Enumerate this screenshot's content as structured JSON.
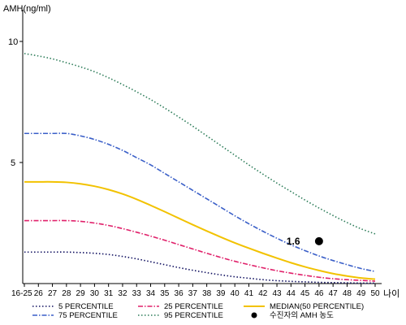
{
  "chart_data": {
    "type": "line",
    "title": "",
    "ylabel": "AMH(ng/ml)",
    "xlabel": "나이",
    "x_categories": [
      "16-25",
      "26",
      "27",
      "28",
      "29",
      "30",
      "31",
      "32",
      "33",
      "34",
      "35",
      "36",
      "37",
      "38",
      "39",
      "40",
      "41",
      "42",
      "43",
      "44",
      "45",
      "46",
      "47",
      "48",
      "49",
      "50"
    ],
    "y_ticks": [
      "10",
      "5"
    ],
    "ylim": [
      0,
      10.5
    ],
    "grid": false,
    "legend_position": "bottom",
    "series": [
      {
        "name": "5 PERCENTILE",
        "color": "#101060",
        "style": "dotted",
        "values": [
          1.3,
          1.3,
          1.3,
          1.3,
          1.28,
          1.25,
          1.2,
          1.12,
          1.02,
          0.9,
          0.78,
          0.66,
          0.55,
          0.45,
          0.36,
          0.28,
          0.22,
          0.16,
          0.12,
          0.09,
          0.07,
          0.05,
          0.04,
          0.03,
          0.02,
          0.02
        ]
      },
      {
        "name": "25 PERCENTILE",
        "color": "#e0206a",
        "style": "dashdot",
        "values": [
          2.6,
          2.6,
          2.6,
          2.6,
          2.57,
          2.5,
          2.4,
          2.27,
          2.12,
          1.96,
          1.79,
          1.61,
          1.43,
          1.25,
          1.08,
          0.92,
          0.78,
          0.65,
          0.53,
          0.43,
          0.34,
          0.26,
          0.2,
          0.16,
          0.13,
          0.1
        ]
      },
      {
        "name": "MEDIAN(50 PERCENTILE)",
        "color": "#f2c200",
        "style": "solid",
        "values": [
          4.2,
          4.2,
          4.2,
          4.18,
          4.12,
          4.02,
          3.88,
          3.7,
          3.48,
          3.23,
          2.97,
          2.7,
          2.43,
          2.17,
          1.92,
          1.68,
          1.46,
          1.25,
          1.05,
          0.86,
          0.69,
          0.54,
          0.41,
          0.31,
          0.23,
          0.18
        ]
      },
      {
        "name": "75 PERCENTILE",
        "color": "#3a5fc8",
        "style": "dashdot",
        "values": [
          6.2,
          6.2,
          6.2,
          6.2,
          6.1,
          5.95,
          5.75,
          5.5,
          5.2,
          4.9,
          4.55,
          4.2,
          3.85,
          3.5,
          3.15,
          2.8,
          2.47,
          2.16,
          1.87,
          1.6,
          1.36,
          1.14,
          0.95,
          0.78,
          0.62,
          0.5
        ]
      },
      {
        "name": "95 PERCENTILE",
        "color": "#2e7d5a",
        "style": "dotted",
        "values": [
          9.5,
          9.4,
          9.28,
          9.12,
          8.95,
          8.75,
          8.5,
          8.22,
          7.92,
          7.6,
          7.25,
          6.88,
          6.5,
          6.1,
          5.7,
          5.3,
          4.9,
          4.52,
          4.15,
          3.8,
          3.45,
          3.12,
          2.81,
          2.52,
          2.26,
          2.05
        ]
      }
    ],
    "annotations": [
      {
        "label": "수진자의 AMH 농도",
        "x": "46",
        "y": 1.75,
        "value_text": "1.6",
        "color": "#000000"
      }
    ]
  }
}
